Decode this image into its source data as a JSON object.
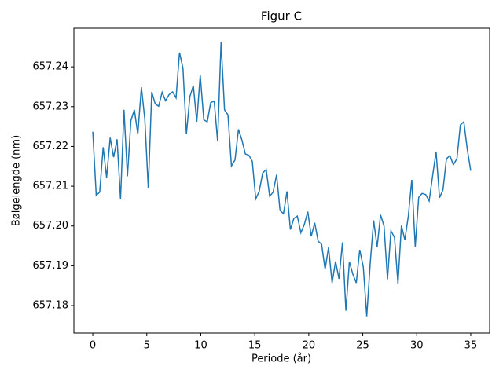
{
  "chart_data": {
    "type": "line",
    "title": "Figur C",
    "x_label": "Periode (år)",
    "y_label": "Bølgelengde (nm)",
    "x": [
      0,
      0.32,
      0.64,
      0.96,
      1.28,
      1.61,
      1.93,
      2.25,
      2.57,
      2.89,
      3.21,
      3.53,
      3.85,
      4.17,
      4.5,
      4.82,
      5.14,
      5.46,
      5.78,
      6.1,
      6.42,
      6.74,
      7.06,
      7.39,
      7.71,
      8.03,
      8.35,
      8.67,
      8.99,
      9.31,
      9.63,
      9.95,
      10.28,
      10.6,
      10.92,
      11.24,
      11.56,
      11.88,
      12.2,
      12.52,
      12.84,
      13.17,
      13.49,
      13.81,
      14.13,
      14.45,
      14.77,
      15.09,
      15.41,
      15.73,
      16.06,
      16.38,
      16.7,
      17.02,
      17.34,
      17.66,
      17.98,
      18.3,
      18.62,
      18.94,
      19.27,
      19.59,
      19.91,
      20.23,
      20.55,
      20.87,
      21.19,
      21.51,
      21.83,
      22.16,
      22.48,
      22.8,
      23.12,
      23.44,
      23.76,
      24.08,
      24.4,
      24.72,
      25.05,
      25.37,
      25.69,
      26.01,
      26.33,
      26.65,
      26.97,
      27.29,
      27.61,
      27.94,
      28.26,
      28.58,
      28.9,
      29.22,
      29.54,
      29.86,
      30.18,
      30.5,
      30.83,
      31.15,
      31.47,
      31.79,
      32.11,
      32.43,
      32.75,
      33.07,
      33.39,
      33.72,
      34.04,
      34.36,
      34.68,
      35.0
    ],
    "series": [
      {
        "color": "#1f77b4",
        "values": [
          657.2237,
          657.2077,
          657.2085,
          657.2198,
          657.2122,
          657.2222,
          657.2173,
          657.2218,
          657.2067,
          657.2292,
          657.2125,
          657.2265,
          657.2292,
          657.2231,
          657.2349,
          657.2268,
          657.2095,
          657.2337,
          657.2307,
          657.2301,
          657.2336,
          657.2315,
          657.233,
          657.2337,
          657.2322,
          657.2436,
          657.2397,
          657.2231,
          657.2325,
          657.2353,
          657.2262,
          657.2379,
          657.2267,
          657.2262,
          657.231,
          657.2314,
          657.2213,
          657.2462,
          657.2292,
          657.2279,
          657.2151,
          657.2166,
          657.2243,
          657.2216,
          657.2181,
          657.2178,
          657.2163,
          657.2068,
          657.2087,
          657.2133,
          657.2142,
          657.2075,
          657.2085,
          657.2129,
          657.2039,
          657.2031,
          657.2087,
          657.1991,
          657.2019,
          657.2025,
          657.1983,
          657.2004,
          657.2036,
          657.1974,
          657.2008,
          657.1962,
          657.1954,
          657.1891,
          657.1946,
          657.1857,
          657.1911,
          657.1867,
          657.1959,
          657.1787,
          657.191,
          657.1879,
          657.1857,
          657.194,
          657.1897,
          657.1773,
          657.1906,
          657.2014,
          657.1947,
          657.2028,
          657.2,
          657.1866,
          657.1988,
          657.1971,
          657.1855,
          657.2001,
          657.1965,
          657.2025,
          657.2116,
          657.1948,
          657.2072,
          657.2082,
          657.2079,
          657.2063,
          657.2126,
          657.2187,
          657.2071,
          657.2091,
          657.2169,
          657.2177,
          657.2154,
          657.2169,
          657.2254,
          657.2262,
          657.2193,
          657.2139
        ]
      }
    ],
    "xlim": [
      -1.75,
      36.75
    ],
    "xticks": [
      0,
      5,
      10,
      15,
      20,
      25,
      30,
      35
    ],
    "ylim": [
      657.1731,
      657.2497
    ],
    "yticks": [
      {
        "value": 657.18,
        "label": "657.18"
      },
      {
        "value": 657.19,
        "label": "657.19"
      },
      {
        "value": 657.2,
        "label": "657.20"
      },
      {
        "value": 657.21,
        "label": "657.21"
      },
      {
        "value": 657.22,
        "label": "657.22"
      },
      {
        "value": 657.23,
        "label": "657.23"
      },
      {
        "value": 657.24,
        "label": "657.24"
      }
    ]
  }
}
